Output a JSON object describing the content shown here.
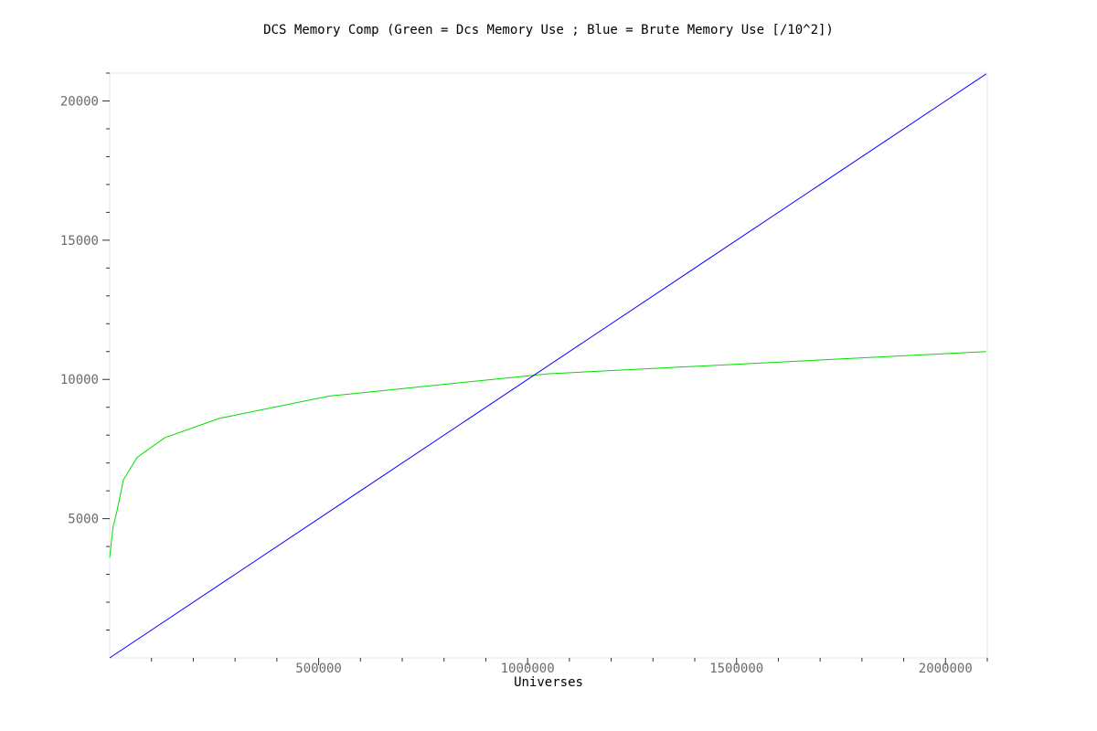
{
  "chart_data": {
    "type": "line",
    "title": "DCS Memory Comp (Green = Dcs Memory Use ; Blue = Brute Memory Use [/10^2])",
    "xlabel": "Universes",
    "ylabel": "",
    "xlim": [
      0,
      2100000
    ],
    "ylim": [
      0,
      21000
    ],
    "x_ticks": [
      "500000",
      "1000000",
      "1500000",
      "2000000"
    ],
    "y_ticks": [
      "5000",
      "10000",
      "15000",
      "20000"
    ],
    "grid": false,
    "legend": "none",
    "series": [
      {
        "color": "#00dd00",
        "x": [
          0,
          4096,
          8192,
          16384,
          32768,
          65536,
          131072,
          262144,
          524288,
          1048576,
          2097152
        ],
        "y": [
          3600,
          4200,
          4700,
          5200,
          6400,
          7200,
          7900,
          8600,
          9400,
          10200,
          11000
        ]
      },
      {
        "color": "#0000ff",
        "x": [
          0,
          2097152
        ],
        "y": [
          0,
          20971
        ]
      }
    ]
  }
}
